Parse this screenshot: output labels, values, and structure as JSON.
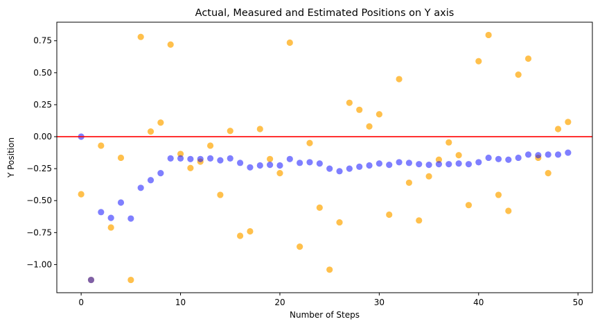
{
  "chart_data": {
    "type": "scatter",
    "title": "Actual, Measured and Estimated Positions on Y axis",
    "xlabel": "Number of Steps",
    "ylabel": "Y Position",
    "xlim": [
      -2.45,
      51.45
    ],
    "ylim": [
      -1.22,
      0.895
    ],
    "xticks": [
      0,
      10,
      20,
      30,
      40,
      50
    ],
    "xtick_labels": [
      "0",
      "10",
      "20",
      "30",
      "40",
      "50"
    ],
    "yticks": [
      -1.0,
      -0.75,
      -0.5,
      -0.25,
      0.0,
      0.25,
      0.5,
      0.75
    ],
    "ytick_labels": [
      "−1.00",
      "−0.75",
      "−0.50",
      "−0.25",
      "0.00",
      "0.25",
      "0.50",
      "0.75"
    ],
    "grid": false,
    "legend": false,
    "series": [
      {
        "role": "measured",
        "color": "#ffa500",
        "x": [
          0,
          1,
          2,
          3,
          4,
          5,
          6,
          7,
          8,
          9,
          10,
          11,
          12,
          13,
          14,
          15,
          16,
          17,
          18,
          19,
          20,
          21,
          22,
          23,
          24,
          25,
          26,
          27,
          28,
          29,
          30,
          31,
          32,
          33,
          34,
          35,
          36,
          37,
          38,
          39,
          40,
          41,
          42,
          43,
          44,
          45,
          46,
          47,
          48,
          49
        ],
        "y": [
          -0.45,
          -1.12,
          -0.07,
          -0.71,
          -0.165,
          -1.12,
          0.78,
          0.04,
          0.11,
          0.72,
          -0.135,
          -0.245,
          -0.195,
          -0.07,
          -0.455,
          0.045,
          -0.775,
          -0.74,
          0.06,
          -0.175,
          -0.285,
          0.735,
          -0.86,
          -0.05,
          -0.555,
          -1.04,
          -0.67,
          0.265,
          0.21,
          0.08,
          0.175,
          -0.61,
          0.45,
          -0.36,
          -0.655,
          -0.31,
          -0.18,
          -0.045,
          -0.145,
          -0.535,
          0.59,
          0.795,
          -0.455,
          -0.58,
          0.485,
          0.61,
          -0.165,
          -0.285,
          0.06,
          0.115
        ]
      },
      {
        "role": "estimated",
        "color": "#0000ff",
        "x": [
          0,
          1,
          2,
          3,
          4,
          5,
          6,
          7,
          8,
          9,
          10,
          11,
          12,
          13,
          14,
          15,
          16,
          17,
          18,
          19,
          20,
          21,
          22,
          23,
          24,
          25,
          26,
          27,
          28,
          29,
          30,
          31,
          32,
          33,
          34,
          35,
          36,
          37,
          38,
          39,
          40,
          41,
          42,
          43,
          44,
          45,
          46,
          47,
          48,
          49
        ],
        "y": [
          0.0,
          -1.12,
          -0.59,
          -0.635,
          -0.515,
          -0.64,
          -0.4,
          -0.34,
          -0.285,
          -0.17,
          -0.17,
          -0.175,
          -0.175,
          -0.17,
          -0.185,
          -0.17,
          -0.205,
          -0.24,
          -0.225,
          -0.22,
          -0.225,
          -0.175,
          -0.205,
          -0.2,
          -0.21,
          -0.25,
          -0.27,
          -0.25,
          -0.235,
          -0.225,
          -0.21,
          -0.22,
          -0.2,
          -0.205,
          -0.215,
          -0.22,
          -0.215,
          -0.215,
          -0.21,
          -0.215,
          -0.2,
          -0.165,
          -0.175,
          -0.18,
          -0.165,
          -0.14,
          -0.145,
          -0.14,
          -0.14,
          -0.125
        ]
      }
    ],
    "hline": {
      "role": "actual",
      "y": 0.0,
      "color": "#ff0000"
    }
  }
}
